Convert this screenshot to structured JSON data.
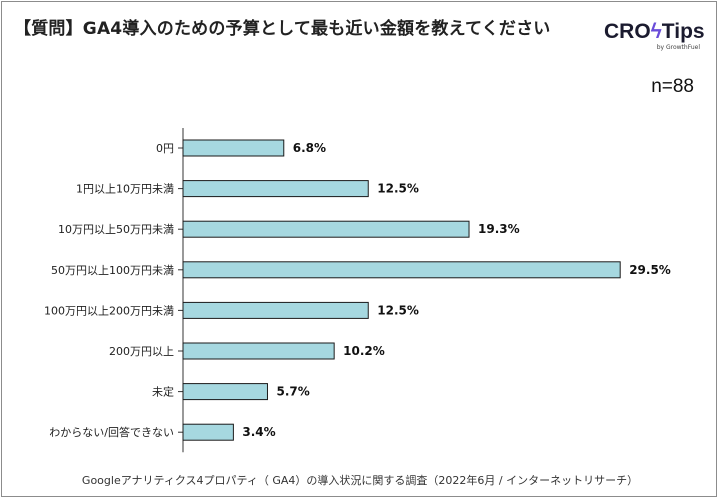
{
  "header": {
    "title": "【質問】GA4導入のための予算として最も近い金額を教えてください",
    "logo_text": "CRO",
    "logo_text_2": "Tips",
    "logo_sub": "by GrowthFuel",
    "sample_size": "n=88"
  },
  "footer": {
    "source": "Googleアナリティクス4プロパティ（ GA4）の導入状況に関する調査（2022年6月 / インターネットリサーチ）"
  },
  "colors": {
    "bar_fill": "#a6d8e0",
    "bar_stroke": "#1a1a1a",
    "axis": "#333333",
    "logo_accent": "#6a4cd9"
  },
  "chart_data": {
    "type": "bar",
    "orientation": "horizontal",
    "title": "【質問】GA4導入のための予算として最も近い金額を教えてください",
    "xlabel": "",
    "ylabel": "",
    "unit": "%",
    "xlim": [
      0,
      30
    ],
    "grid": false,
    "categories": [
      "0円",
      "1円以上10万円未満",
      "10万円以上50万円未満",
      "50万円以上100万円未満",
      "100万円以上200万円未満",
      "200万円以上",
      "未定",
      "わからない/回答できない"
    ],
    "values": [
      6.8,
      12.5,
      19.3,
      29.5,
      12.5,
      10.2,
      5.7,
      3.4
    ],
    "value_labels": [
      "6.8%",
      "12.5%",
      "19.3%",
      "29.5%",
      "12.5%",
      "10.2%",
      "5.7%",
      "3.4%"
    ]
  }
}
